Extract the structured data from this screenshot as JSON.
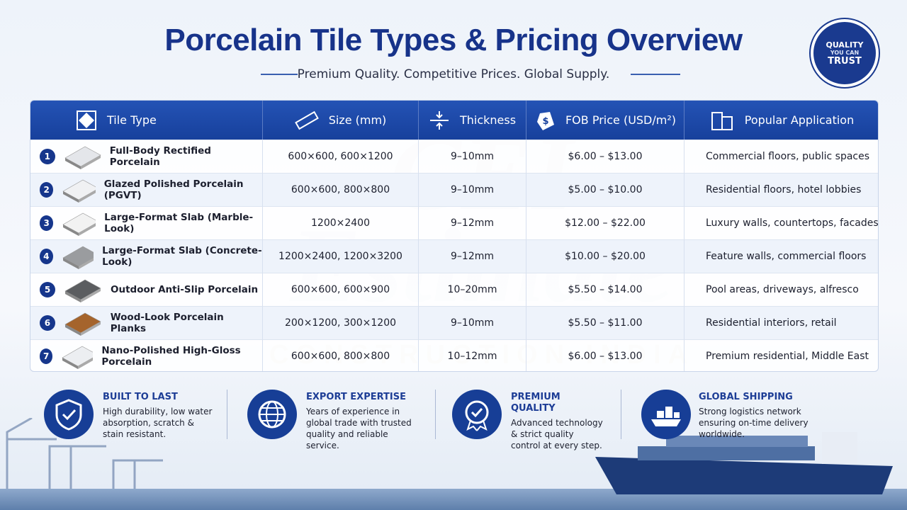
{
  "header": {
    "title": "Porcelain Tile Types & Pricing Overview",
    "subtitle": "Premium Quality. Competitive Prices. Global Supply."
  },
  "badge": [
    "QUALITY",
    "YOU CAN",
    "TRUST"
  ],
  "watermark": [
    "CEI",
    "Estimate",
    "CONSTRUCTION INDIA"
  ],
  "table": {
    "columns": [
      "Tile Type",
      "Size (mm)",
      "Thickness",
      "FOB Price (USD/m²)",
      "Popular Application"
    ],
    "rows": [
      [
        1,
        "Full-Body Rectified Porcelain",
        "600×600, 600×1200",
        "9–10mm",
        "$6.00 – $13.00",
        "Commercial floors, public spaces"
      ],
      [
        2,
        "Glazed Polished Porcelain (PGVT)",
        "600×600, 800×800",
        "9–10mm",
        "$5.00 – $10.00",
        "Residential floors, hotel lobbies"
      ],
      [
        3,
        "Large-Format Slab (Marble-Look)",
        "1200×2400",
        "9–12mm",
        "$12.00 – $22.00",
        "Luxury walls, countertops, facades"
      ],
      [
        4,
        "Large-Format Slab (Concrete-Look)",
        "1200×2400, 1200×3200",
        "9–12mm",
        "$10.00 – $20.00",
        "Feature walls, commercial floors"
      ],
      [
        5,
        "Outdoor Anti-Slip Porcelain",
        "600×600, 600×900",
        "10–20mm",
        "$5.50 – $14.00",
        "Pool areas, driveways, alfresco"
      ],
      [
        6,
        "Wood-Look Porcelain Planks",
        "200×1200, 300×1200",
        "9–10mm",
        "$5.50 – $11.00",
        "Residential interiors, retail"
      ],
      [
        7,
        "Nano-Polished High-Gloss Porcelain",
        "600×600, 800×800",
        "10–12mm",
        "$6.00 – $13.00",
        "Premium residential, Middle East"
      ]
    ]
  },
  "features": [
    {
      "title": "BUILT TO LAST",
      "text": "High durability, low water absorption, scratch & stain resistant."
    },
    {
      "title": "EXPORT EXPERTISE",
      "text": "Years of experience in global trade with trusted quality and reliable service."
    },
    {
      "title": "PREMIUM QUALITY",
      "text": "Advanced technology & strict quality control at every step."
    },
    {
      "title": "GLOBAL SHIPPING",
      "text": "Strong logistics network ensuring on-time delivery worldwide."
    }
  ]
}
